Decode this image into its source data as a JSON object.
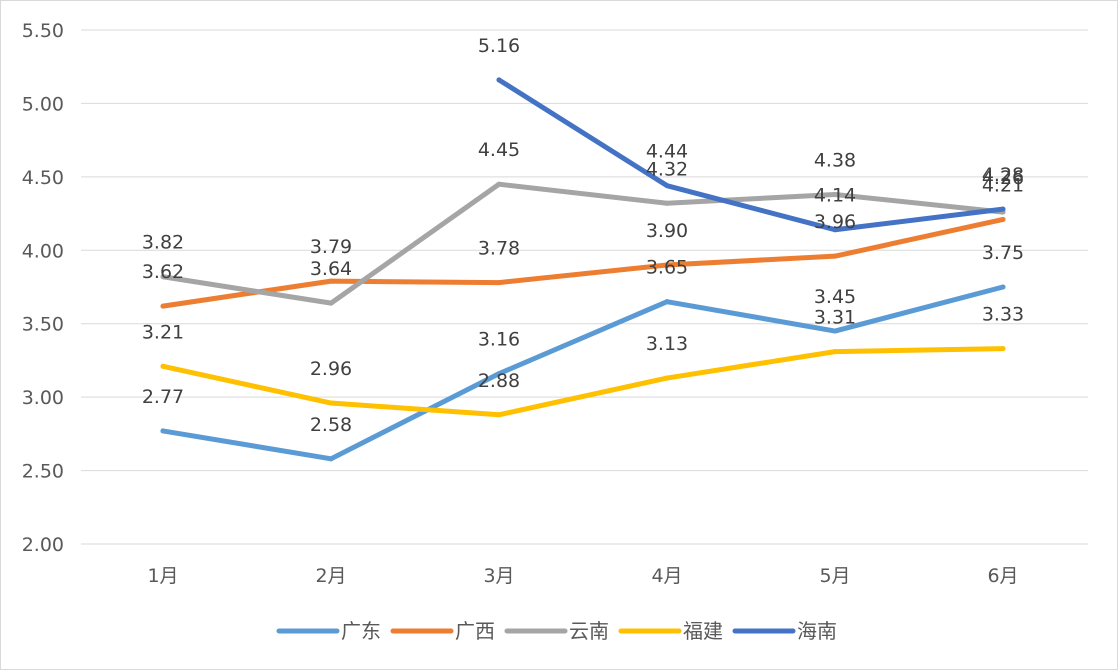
{
  "chart_data": {
    "type": "line",
    "title": "",
    "xlabel": "",
    "ylabel": "",
    "categories": [
      "1月",
      "2月",
      "3月",
      "4月",
      "5月",
      "6月"
    ],
    "ylim": [
      2.0,
      5.5
    ],
    "yticks": [
      "2.00",
      "2.50",
      "3.00",
      "3.50",
      "4.00",
      "4.50",
      "5.00",
      "5.50"
    ],
    "ytick_values": [
      2.0,
      2.5,
      3.0,
      3.5,
      4.0,
      4.5,
      5.0,
      5.5
    ],
    "grid": true,
    "legend_position": "bottom",
    "series": [
      {
        "name": "广东",
        "color": "#5B9BD5",
        "values": [
          2.77,
          2.58,
          3.16,
          3.65,
          3.45,
          3.75
        ],
        "labels": [
          "2.77",
          "2.58",
          "3.16",
          "3.65",
          "3.45",
          "3.75"
        ]
      },
      {
        "name": "广西",
        "color": "#ED7D31",
        "values": [
          3.62,
          3.79,
          3.78,
          3.9,
          3.96,
          4.21
        ],
        "labels": [
          "3.62",
          "3.79",
          "3.78",
          "3.90",
          "3.96",
          "4.21"
        ]
      },
      {
        "name": "云南",
        "color": "#A5A5A5",
        "values": [
          3.82,
          3.64,
          4.45,
          4.32,
          4.38,
          4.26
        ],
        "labels": [
          "3.82",
          "3.64",
          "4.45",
          "4.32",
          "4.38",
          "4.26"
        ]
      },
      {
        "name": "福建",
        "color": "#FFC000",
        "values": [
          3.21,
          2.96,
          2.88,
          3.13,
          3.31,
          3.33
        ],
        "labels": [
          "3.21",
          "2.96",
          "2.88",
          "3.13",
          "3.31",
          "3.33"
        ]
      },
      {
        "name": "海南",
        "color": "#4472C4",
        "values": [
          null,
          null,
          5.16,
          4.44,
          4.14,
          4.28
        ],
        "labels": [
          "",
          "",
          "5.16",
          "4.44",
          "4.14",
          "4.28"
        ]
      }
    ]
  }
}
